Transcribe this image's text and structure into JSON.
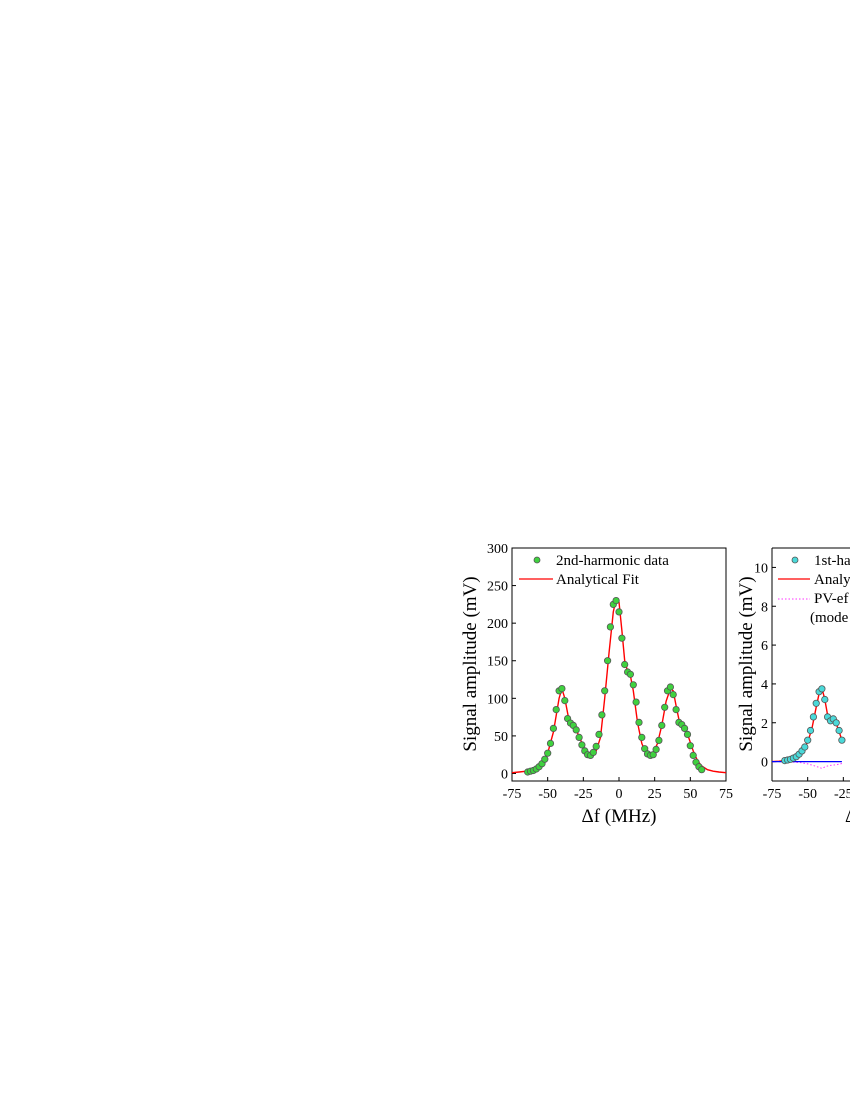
{
  "colors": {
    "data_fill_left": "#3fd13f",
    "data_fill_right": "#4ad9d9",
    "marker_stroke": "#555555",
    "fit_line": "#ff0000",
    "pv_line": "#ff33ff",
    "zero_line": "#0000ff"
  },
  "chart_data": [
    {
      "type": "scatter",
      "xlabel": "Δf (MHz)",
      "ylabel": "Signal amplitude (mV)",
      "xlim": [
        -75,
        75
      ],
      "ylim": [
        -10,
        300
      ],
      "xticks": [
        "-75",
        "-50",
        "-25",
        "0",
        "25",
        "50",
        "75"
      ],
      "yticks": [
        "0",
        "50",
        "100",
        "150",
        "200",
        "250",
        "300"
      ],
      "legend_position": "top-left",
      "series": [
        {
          "name": "2nd-harmonic data",
          "style": "markers",
          "x": [
            -64,
            -62,
            -60,
            -58,
            -56,
            -54,
            -52,
            -50,
            -48,
            -46,
            -44,
            -42,
            -40,
            -38,
            -36,
            -34,
            -32,
            -30,
            -28,
            -26,
            -24,
            -22,
            -20,
            -18,
            -16,
            -14,
            -12,
            -10,
            -8,
            -6,
            -4,
            -2,
            0,
            2,
            4,
            6,
            8,
            10,
            12,
            14,
            16,
            18,
            20,
            22,
            24,
            26,
            28,
            30,
            32,
            34,
            36,
            38,
            40,
            42,
            44,
            46,
            48,
            50,
            52,
            54,
            56,
            58
          ],
          "y": [
            2,
            3,
            4,
            6,
            9,
            13,
            19,
            27,
            40,
            60,
            85,
            110,
            113,
            97,
            73,
            67,
            64,
            58,
            48,
            38,
            30,
            25,
            24,
            28,
            36,
            52,
            78,
            110,
            150,
            195,
            225,
            230,
            215,
            180,
            145,
            135,
            132,
            118,
            95,
            68,
            48,
            33,
            26,
            24,
            25,
            32,
            44,
            64,
            88,
            110,
            115,
            105,
            85,
            68,
            65,
            60,
            52,
            37,
            24,
            15,
            9,
            5
          ]
        },
        {
          "name": "Analytical Fit",
          "style": "line",
          "x": [
            -75,
            -70,
            -65,
            -60,
            -55,
            -50,
            -46,
            -42,
            -40,
            -38,
            -35,
            -32,
            -30,
            -27,
            -24,
            -21,
            -19,
            -16,
            -13,
            -10,
            -7,
            -4,
            -2,
            0,
            2,
            4,
            6,
            8,
            10,
            13,
            16,
            19,
            21,
            24,
            27,
            30,
            33,
            36,
            38,
            40,
            42,
            44,
            46,
            49,
            52,
            55,
            58,
            62,
            66,
            70,
            75
          ],
          "y": [
            1,
            2,
            3,
            6,
            12,
            27,
            55,
            100,
            113,
            100,
            70,
            64,
            58,
            45,
            32,
            25,
            24,
            30,
            48,
            100,
            160,
            215,
            232,
            228,
            190,
            150,
            136,
            130,
            110,
            68,
            40,
            26,
            24,
            27,
            40,
            64,
            96,
            113,
            110,
            90,
            72,
            66,
            62,
            47,
            30,
            17,
            10,
            5,
            3,
            2,
            1
          ]
        }
      ]
    },
    {
      "type": "scatter",
      "ylabel": "Signal amplitude (mV)",
      "xlim": [
        -75,
        75
      ],
      "ylim": [
        -1,
        11
      ],
      "xticks": [
        "-75",
        "-50",
        "-25"
      ],
      "yticks": [
        "0",
        "2",
        "4",
        "6",
        "8",
        "10"
      ],
      "legend_position": "top-left",
      "xlabel_fragment": "Δ",
      "series": [
        {
          "name_fragment": "1st-ha",
          "style": "markers",
          "x": [
            -66,
            -64,
            -62,
            -60,
            -58,
            -56,
            -54,
            -52,
            -50,
            -48,
            -46,
            -44,
            -42,
            -40,
            -38,
            -36,
            -34,
            -32,
            -30,
            -28,
            -26
          ],
          "y": [
            0.05,
            0.08,
            0.12,
            0.18,
            0.25,
            0.38,
            0.55,
            0.75,
            1.1,
            1.6,
            2.3,
            3.0,
            3.6,
            3.75,
            3.2,
            2.3,
            2.1,
            2.2,
            2.0,
            1.6,
            1.1
          ]
        },
        {
          "name_fragment": "Analy",
          "style": "line",
          "x": [
            -75,
            -70,
            -65,
            -60,
            -55,
            -50,
            -47,
            -44,
            -42,
            -40,
            -38,
            -36,
            -34,
            -32,
            -30,
            -28,
            -26
          ],
          "y": [
            0.0,
            0.02,
            0.06,
            0.2,
            0.45,
            1.0,
            1.7,
            2.8,
            3.5,
            3.8,
            3.2,
            2.4,
            2.15,
            2.2,
            1.95,
            1.55,
            1.1
          ]
        },
        {
          "name_fragment": "PV-ef",
          "name_fragment_2": "(mode",
          "style": "dotted",
          "x": [
            -75,
            -65,
            -55,
            -50,
            -46,
            -42,
            -40,
            -38,
            -35,
            -32,
            -29,
            -26
          ],
          "y": [
            0.0,
            0.0,
            -0.05,
            -0.12,
            -0.2,
            -0.3,
            -0.35,
            -0.28,
            -0.2,
            -0.18,
            -0.15,
            -0.1
          ]
        },
        {
          "style": "line",
          "x": [
            -75,
            -26
          ],
          "y": [
            0,
            0
          ]
        }
      ]
    }
  ]
}
